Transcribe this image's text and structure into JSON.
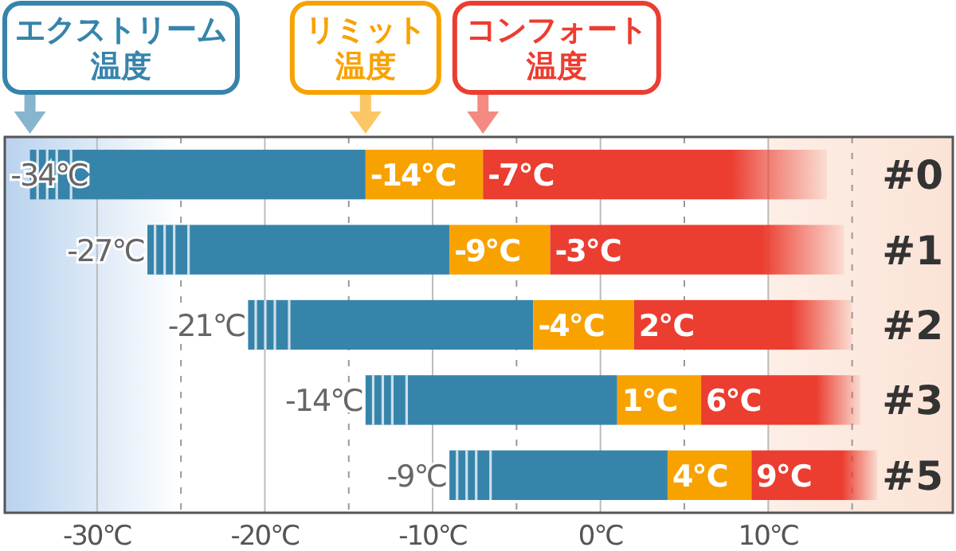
{
  "chart_data": {
    "type": "bar",
    "orientation": "horizontal",
    "categories": [
      "#0",
      "#1",
      "#2",
      "#3",
      "#5"
    ],
    "series": [
      {
        "color": "#3784ab",
        "base": [
          -34,
          -27,
          -21,
          -14,
          -9
        ],
        "values": [
          20,
          18,
          17,
          15,
          13
        ]
      },
      {
        "color": "#f8a200",
        "base": [
          -14,
          -9,
          -4,
          1,
          4
        ],
        "values": [
          7,
          6,
          6,
          5,
          5
        ]
      },
      {
        "color": "#eb3d30",
        "base": [
          -7,
          -3,
          2,
          6,
          9
        ],
        "values": [
          20.5,
          17.5,
          13,
          9.5,
          7.5
        ]
      }
    ],
    "xlim": [
      -35.5,
      21
    ],
    "xticks": [
      {
        "value": -30,
        "label": "-30℃"
      },
      {
        "value": -25,
        "label": null
      },
      {
        "value": -20,
        "label": "-20℃"
      },
      {
        "value": -15,
        "label": null
      },
      {
        "value": -10,
        "label": "-10℃"
      },
      {
        "value": -5,
        "label": null
      },
      {
        "value": 0,
        "label": "0℃"
      },
      {
        "value": 5,
        "label": null
      },
      {
        "value": 10,
        "label": "10℃"
      },
      {
        "value": 15,
        "label": null
      }
    ],
    "grid": "x",
    "bands": [
      {
        "axis": "x",
        "from": -35.5,
        "to": -25,
        "color": "#b9d2ee"
      },
      {
        "axis": "x",
        "from": 10,
        "to": 21,
        "color": "#fbe3d6"
      }
    ],
    "annotations": [
      "エクストリーム温度",
      "リミット温度",
      "コンフォート温度",
      {
        "text": "-34℃",
        "x": -34,
        "y": "#0"
      },
      {
        "text": "-14℃",
        "x": -14,
        "y": "#0"
      },
      {
        "text": "-7℃",
        "x": -7,
        "y": "#0"
      },
      {
        "text": "-27℃",
        "x": -27,
        "y": "#1"
      },
      {
        "text": "-9℃",
        "x": -9,
        "y": "#1"
      },
      {
        "text": "-3℃",
        "x": -3,
        "y": "#1"
      },
      {
        "text": "-21℃",
        "x": -21,
        "y": "#2"
      },
      {
        "text": "-4℃",
        "x": -4,
        "y": "#2"
      },
      {
        "text": "2℃",
        "x": 2,
        "y": "#2"
      },
      {
        "text": "-14℃",
        "x": -14,
        "y": "#3"
      },
      {
        "text": "1℃",
        "x": 1,
        "y": "#3"
      },
      {
        "text": "6℃",
        "x": 6,
        "y": "#3"
      },
      {
        "text": "-9℃",
        "x": -9,
        "y": "#5"
      },
      {
        "text": "4℃",
        "x": 4,
        "y": "#5"
      },
      {
        "text": "9℃",
        "x": 9,
        "y": "#5"
      }
    ]
  }
}
